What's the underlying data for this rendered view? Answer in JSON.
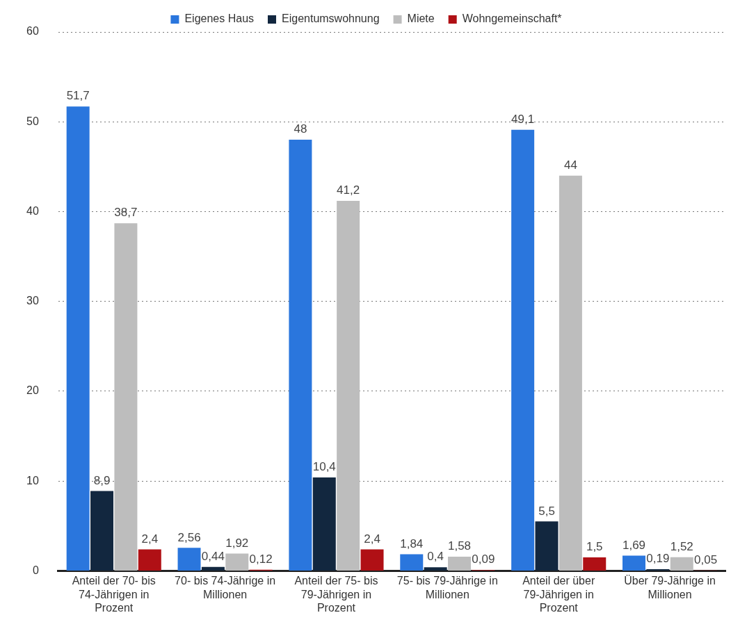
{
  "chart_data": {
    "type": "bar",
    "categories": [
      "Anteil der 70- bis 74-Jährigen in Prozent",
      "70- bis 74-Jährige in Millionen",
      "Anteil der 75- bis 79-Jährigen in Prozent",
      "75- bis 79-Jährige in Millionen",
      "Anteil der über 79-Jährigen in Prozent",
      "Über 79-Jährige in Millionen"
    ],
    "series": [
      {
        "name": "Eigenes Haus",
        "color": "#2a76dd",
        "values": [
          51.7,
          2.56,
          48,
          1.84,
          49.1,
          1.69
        ],
        "value_labels": [
          "51,7",
          "2,56",
          "48",
          "1,84",
          "49,1",
          "1,69"
        ]
      },
      {
        "name": "Eigentumswohnung",
        "color": "#12273f",
        "values": [
          8.9,
          0.44,
          10.4,
          0.4,
          5.5,
          0.19
        ],
        "value_labels": [
          "8,9",
          "0,44",
          "10,4",
          "0,4",
          "5,5",
          "0,19"
        ]
      },
      {
        "name": "Miete",
        "color": "#bdbdbd",
        "values": [
          38.7,
          1.92,
          41.2,
          1.58,
          44,
          1.52
        ],
        "value_labels": [
          "38,7",
          "1,92",
          "41,2",
          "1,58",
          "44",
          "1,52"
        ]
      },
      {
        "name": "Wohngemeinschaft*",
        "color": "#b01015",
        "values": [
          2.4,
          0.12,
          2.4,
          0.09,
          1.5,
          0.05
        ],
        "value_labels": [
          "2,4",
          "0,12",
          "2,4",
          "0,09",
          "1,5",
          "0,05"
        ]
      }
    ],
    "ylim": [
      0,
      60
    ],
    "yticks": [
      0,
      10,
      20,
      30,
      40,
      50,
      60
    ],
    "grid": "y",
    "legend": "top"
  }
}
